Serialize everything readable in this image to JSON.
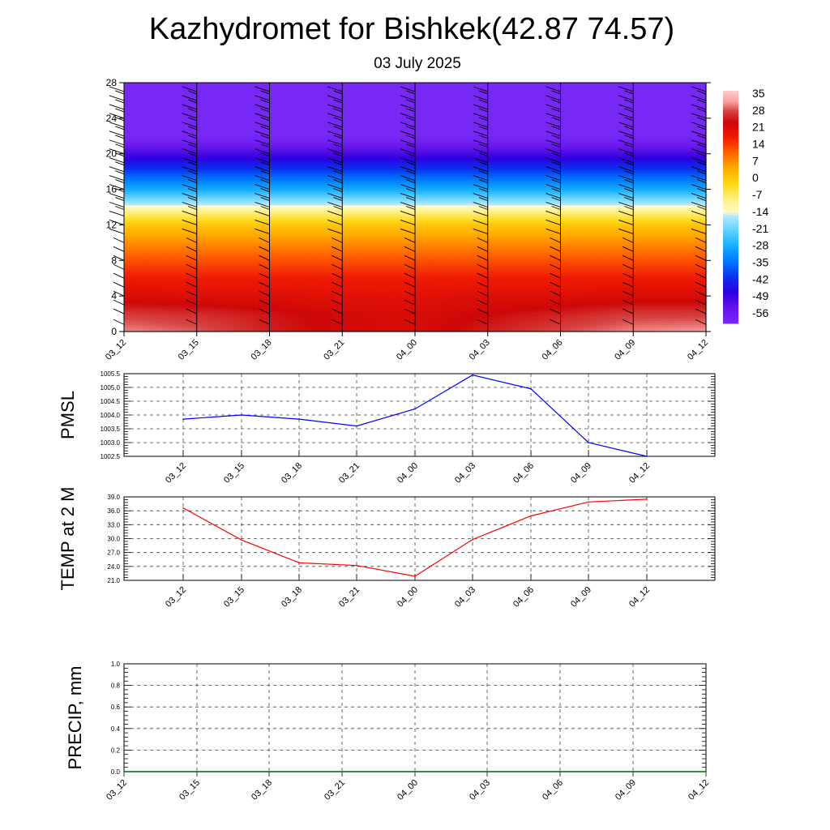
{
  "title": "Kazhydromet for Bishkek(42.87 74.57)",
  "subtitle": "03 July 2025",
  "chart_data": [
    {
      "type": "heatmap",
      "name": "vertical-temperature-cross-section",
      "x_tick_labels": [
        "03_12",
        "03_15",
        "03_18",
        "03_21",
        "04_00",
        "04_03",
        "04_06",
        "04_09",
        "04_12"
      ],
      "y_tick_labels": [
        "0",
        "4",
        "8",
        "12",
        "16",
        "20",
        "24",
        "28"
      ],
      "ylim": [
        0,
        28
      ],
      "colorbar": {
        "labels": [
          "35",
          "28",
          "21",
          "14",
          "7",
          "0",
          "-7",
          "-14",
          "-21",
          "-28",
          "-35",
          "-42",
          "-49",
          "-56"
        ],
        "range": [
          -63,
          42
        ]
      },
      "temperature_profile": {
        "heights": [
          0,
          2,
          4,
          6,
          8,
          10,
          12,
          13.5,
          14,
          16,
          18,
          20,
          21,
          22,
          28
        ],
        "values_by_time": [
          [
            36,
            32,
            26,
            21,
            16,
            10,
            3,
            -7,
            -12,
            -28,
            -40,
            -52,
            -58,
            -63,
            -63
          ],
          [
            34,
            31,
            25,
            21,
            16,
            10,
            3,
            -7,
            -12,
            -28,
            -40,
            -52,
            -58,
            -63,
            -63
          ],
          [
            30,
            29,
            25,
            21,
            16,
            10,
            3,
            -7,
            -12,
            -28,
            -40,
            -52,
            -58,
            -63,
            -63
          ],
          [
            27,
            27,
            24,
            21,
            16,
            10,
            3,
            -7,
            -12,
            -28,
            -40,
            -52,
            -58,
            -63,
            -63
          ],
          [
            26,
            26,
            24,
            21,
            16,
            10,
            3,
            -7,
            -12,
            -28,
            -40,
            -52,
            -58,
            -63,
            -63
          ],
          [
            30,
            28,
            25,
            21,
            16,
            10,
            3,
            -7,
            -12,
            -28,
            -40,
            -52,
            -58,
            -63,
            -63
          ],
          [
            33,
            30,
            25,
            21,
            16,
            10,
            3,
            -7,
            -12,
            -28,
            -40,
            -52,
            -58,
            -63,
            -63
          ],
          [
            36,
            32,
            26,
            21,
            16,
            10,
            3,
            -7,
            -12,
            -28,
            -40,
            -52,
            -58,
            -63,
            -63
          ],
          [
            37,
            32,
            26,
            21,
            16,
            10,
            3,
            -7,
            -12,
            -28,
            -40,
            -52,
            -58,
            -63,
            -63
          ]
        ]
      },
      "wind_barb_heights": [
        0.8,
        2,
        3,
        4,
        5,
        6,
        7,
        8,
        9,
        10,
        11,
        12,
        13,
        14,
        15,
        16,
        17,
        18,
        19,
        20,
        21,
        22,
        23,
        24,
        25,
        26,
        27
      ]
    },
    {
      "type": "line",
      "ylabel": "PMSL",
      "ylim": [
        1002.5,
        1005.5
      ],
      "y_tick_labels": [
        "1002.5",
        "1003.0",
        "1003.5",
        "1004.0",
        "1004.5",
        "1005.0",
        "1005.5"
      ],
      "categories": [
        "03_12",
        "03_15",
        "03_18",
        "03_21",
        "04_00",
        "04_03",
        "04_06",
        "04_09",
        "04_12"
      ],
      "values": [
        1003.85,
        1004.0,
        1003.85,
        1003.6,
        1004.22,
        1005.45,
        1004.95,
        1003.0,
        1002.5
      ],
      "color": "#0000ff"
    },
    {
      "type": "line",
      "ylabel": "TEMP at 2 M",
      "ylim": [
        21.0,
        39.0
      ],
      "y_tick_labels": [
        "21.0",
        "24.0",
        "27.0",
        "30.0",
        "33.0",
        "36.0",
        "39.0"
      ],
      "categories": [
        "03_12",
        "03_15",
        "03_18",
        "03_21",
        "04_00",
        "04_03",
        "04_06",
        "04_09",
        "04_12"
      ],
      "values": [
        36.6,
        29.7,
        24.8,
        24.2,
        21.9,
        29.8,
        34.9,
        37.9,
        38.5
      ],
      "color": "#ff0000"
    },
    {
      "type": "line",
      "ylabel": "PRECIP, mm",
      "ylim": [
        0.0,
        1.0
      ],
      "y_tick_labels": [
        "0.0",
        "0.2",
        "0.4",
        "0.6",
        "0.8",
        "1.0"
      ],
      "categories": [
        "03_12",
        "03_15",
        "03_18",
        "03_21",
        "04_00",
        "04_03",
        "04_06",
        "04_09",
        "04_12"
      ],
      "values": [
        0,
        0,
        0,
        0,
        0,
        0,
        0,
        0,
        0
      ],
      "color": "#006400"
    }
  ]
}
